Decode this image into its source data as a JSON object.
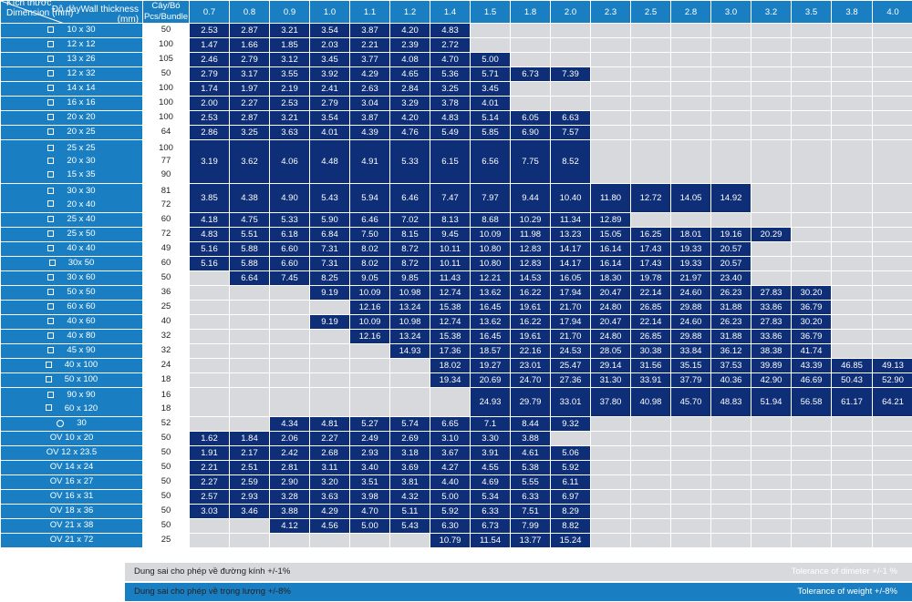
{
  "header": {
    "thickness_vi": "Độ dày",
    "thickness_en": "Wall thickness",
    "thickness_unit": "(mm)",
    "dimension_vi": "Kích thước",
    "dimension_en": "Dimension (mm)",
    "pcs_vi": "Cây/Bó",
    "pcs_en": "Pcs/Bundle",
    "thicknesses": [
      "0.7",
      "0.8",
      "0.9",
      "1.0",
      "1.1",
      "1.2",
      "1.4",
      "1.5",
      "1.8",
      "2.0",
      "2.3",
      "2.5",
      "2.8",
      "3.0",
      "3.2",
      "3.5",
      "3.8",
      "4.0"
    ]
  },
  "rows": [
    {
      "shape": "square",
      "dims": [
        "10 x 30"
      ],
      "pcs": [
        "50"
      ],
      "cells": [
        "2.53",
        "2.87",
        "3.21",
        "3.54",
        "3.87",
        "4.20",
        "4.83",
        null,
        null,
        null,
        null,
        null,
        null,
        null,
        null,
        null,
        null,
        null
      ]
    },
    {
      "shape": "square",
      "dims": [
        "12 x 12"
      ],
      "pcs": [
        "100"
      ],
      "cells": [
        "1.47",
        "1.66",
        "1.85",
        "2.03",
        "2.21",
        "2.39",
        "2.72",
        null,
        null,
        null,
        null,
        null,
        null,
        null,
        null,
        null,
        null,
        null
      ]
    },
    {
      "shape": "square",
      "dims": [
        "13 x 26"
      ],
      "pcs": [
        "105"
      ],
      "cells": [
        "2.46",
        "2.79",
        "3.12",
        "3.45",
        "3.77",
        "4.08",
        "4.70",
        "5.00",
        null,
        null,
        null,
        null,
        null,
        null,
        null,
        null,
        null,
        null
      ]
    },
    {
      "shape": "square",
      "dims": [
        "12 x 32"
      ],
      "pcs": [
        "50"
      ],
      "cells": [
        "2.79",
        "3.17",
        "3.55",
        "3.92",
        "4.29",
        "4.65",
        "5.36",
        "5.71",
        "6.73",
        "7.39",
        null,
        null,
        null,
        null,
        null,
        null,
        null,
        null
      ]
    },
    {
      "shape": "square",
      "dims": [
        "14 x 14"
      ],
      "pcs": [
        "100"
      ],
      "cells": [
        "1.74",
        "1.97",
        "2.19",
        "2.41",
        "2.63",
        "2.84",
        "3.25",
        "3.45",
        null,
        null,
        null,
        null,
        null,
        null,
        null,
        null,
        null,
        null
      ]
    },
    {
      "shape": "square",
      "dims": [
        "16 x 16"
      ],
      "pcs": [
        "100"
      ],
      "cells": [
        "2.00",
        "2.27",
        "2.53",
        "2.79",
        "3.04",
        "3.29",
        "3.78",
        "4.01",
        null,
        null,
        null,
        null,
        null,
        null,
        null,
        null,
        null,
        null
      ]
    },
    {
      "shape": "square",
      "dims": [
        "20 x 20"
      ],
      "pcs": [
        "100"
      ],
      "cells": [
        "2.53",
        "2.87",
        "3.21",
        "3.54",
        "3.87",
        "4.20",
        "4.83",
        "5.14",
        "6.05",
        "6.63",
        null,
        null,
        null,
        null,
        null,
        null,
        null,
        null
      ]
    },
    {
      "shape": "square",
      "dims": [
        "20 x 25"
      ],
      "pcs": [
        "64"
      ],
      "cells": [
        "2.86",
        "3.25",
        "3.63",
        "4.01",
        "4.39",
        "4.76",
        "5.49",
        "5.85",
        "6.90",
        "7.57",
        null,
        null,
        null,
        null,
        null,
        null,
        null,
        null
      ]
    },
    {
      "shape": "square",
      "dims": [
        "25 x 25",
        "20 x 30",
        "15 x 35"
      ],
      "pcs": [
        "100",
        "77",
        "90"
      ],
      "cells": [
        "3.19",
        "3.62",
        "4.06",
        "4.48",
        "4.91",
        "5.33",
        "6.15",
        "6.56",
        "7.75",
        "8.52",
        null,
        null,
        null,
        null,
        null,
        null,
        null,
        null
      ]
    },
    {
      "shape": "square",
      "dims": [
        "30 x 30",
        "20 x 40"
      ],
      "pcs": [
        "81",
        "72"
      ],
      "cells": [
        "3.85",
        "4.38",
        "4.90",
        "5.43",
        "5.94",
        "6.46",
        "7.47",
        "7.97",
        "9.44",
        "10.40",
        "11.80",
        "12.72",
        "14.05",
        "14.92",
        null,
        null,
        null,
        null
      ]
    },
    {
      "shape": "square",
      "dims": [
        "25 x 40"
      ],
      "pcs": [
        "60"
      ],
      "cells": [
        "4.18",
        "4.75",
        "5.33",
        "5.90",
        "6.46",
        "7.02",
        "8.13",
        "8.68",
        "10.29",
        "11.34",
        "12.89",
        null,
        null,
        null,
        null,
        null,
        null,
        null
      ]
    },
    {
      "shape": "square",
      "dims": [
        "25 x 50"
      ],
      "pcs": [
        "72"
      ],
      "cells": [
        "4.83",
        "5.51",
        "6.18",
        "6.84",
        "7.50",
        "8.15",
        "9.45",
        "10.09",
        "11.98",
        "13.23",
        "15.05",
        "16.25",
        "18.01",
        "19.16",
        "20.29",
        null,
        null,
        null
      ]
    },
    {
      "shape": "square",
      "dims": [
        "40 x 40"
      ],
      "pcs": [
        "49"
      ],
      "cells": [
        "5.16",
        "5.88",
        "6.60",
        "7.31",
        "8.02",
        "8.72",
        "10.11",
        "10.80",
        "12.83",
        "14.17",
        "16.14",
        "17.43",
        "19.33",
        "20.57",
        null,
        null,
        null,
        null
      ]
    },
    {
      "shape": "square",
      "dims": [
        "30x 50"
      ],
      "pcs": [
        "60"
      ],
      "cells": [
        "5.16",
        "5.88",
        "6.60",
        "7.31",
        "8.02",
        "8.72",
        "10.11",
        "10.80",
        "12.83",
        "14.17",
        "16.14",
        "17.43",
        "19.33",
        "20.57",
        null,
        null,
        null,
        null
      ]
    },
    {
      "shape": "square",
      "dims": [
        "30 x 60"
      ],
      "pcs": [
        "50"
      ],
      "cells": [
        null,
        "6.64",
        "7.45",
        "8.25",
        "9.05",
        "9.85",
        "11.43",
        "12.21",
        "14.53",
        "16.05",
        "18.30",
        "19.78",
        "21.97",
        "23.40",
        null,
        null,
        null,
        null
      ]
    },
    {
      "shape": "square",
      "dims": [
        "50 x 50"
      ],
      "pcs": [
        "36"
      ],
      "cells": [
        null,
        null,
        null,
        "9.19",
        "10.09",
        "10.98",
        "12.74",
        "13.62",
        "16.22",
        "17.94",
        "20.47",
        "22.14",
        "24.60",
        "26.23",
        "27.83",
        "30.20",
        null,
        null
      ]
    },
    {
      "shape": "square",
      "dims": [
        "60 x 60"
      ],
      "pcs": [
        "25"
      ],
      "cells": [
        null,
        null,
        null,
        null,
        "12.16",
        "13.24",
        "15.38",
        "16.45",
        "19.61",
        "21.70",
        "24.80",
        "26.85",
        "29.88",
        "31.88",
        "33.86",
        "36.79",
        null,
        null
      ]
    },
    {
      "shape": "square",
      "dims": [
        "40 x 60"
      ],
      "pcs": [
        "40"
      ],
      "cells": [
        null,
        null,
        null,
        "9.19",
        "10.09",
        "10.98",
        "12.74",
        "13.62",
        "16.22",
        "17.94",
        "20.47",
        "22.14",
        "24.60",
        "26.23",
        "27.83",
        "30.20",
        null,
        null
      ]
    },
    {
      "shape": "square",
      "dims": [
        "40 x 80"
      ],
      "pcs": [
        "32"
      ],
      "cells": [
        null,
        null,
        null,
        null,
        "12.16",
        "13.24",
        "15.38",
        "16.45",
        "19.61",
        "21.70",
        "24.80",
        "26.85",
        "29.88",
        "31.88",
        "33.86",
        "36.79",
        null,
        null
      ]
    },
    {
      "shape": "square",
      "dims": [
        "45 x 90"
      ],
      "pcs": [
        "32"
      ],
      "cells": [
        null,
        null,
        null,
        null,
        null,
        "14.93",
        "17.36",
        "18.57",
        "22.16",
        "24.53",
        "28.05",
        "30.38",
        "33.84",
        "36.12",
        "38.38",
        "41.74",
        null,
        null
      ]
    },
    {
      "shape": "square",
      "dims": [
        "40 x 100"
      ],
      "pcs": [
        "24"
      ],
      "cells": [
        null,
        null,
        null,
        null,
        null,
        null,
        "18.02",
        "19.27",
        "23.01",
        "25.47",
        "29.14",
        "31.56",
        "35.15",
        "37.53",
        "39.89",
        "43.39",
        "46.85",
        "49.13"
      ]
    },
    {
      "shape": "square",
      "dims": [
        "50 x 100"
      ],
      "pcs": [
        "18"
      ],
      "cells": [
        null,
        null,
        null,
        null,
        null,
        null,
        "19.34",
        "20.69",
        "24.70",
        "27.36",
        "31.30",
        "33.91",
        "37.79",
        "40.36",
        "42.90",
        "46.69",
        "50.43",
        "52.90"
      ]
    },
    {
      "shape": "square",
      "dims": [
        "90 x 90",
        "60 x 120"
      ],
      "pcs": [
        "16",
        "18"
      ],
      "cells": [
        null,
        null,
        null,
        null,
        null,
        null,
        null,
        "24.93",
        "29.79",
        "33.01",
        "37.80",
        "40.98",
        "45.70",
        "48.83",
        "51.94",
        "56.58",
        "61.17",
        "64.21"
      ]
    },
    {
      "shape": "circle",
      "dims": [
        "30"
      ],
      "pcs": [
        "52"
      ],
      "cells": [
        null,
        null,
        "4.34",
        "4.81",
        "5.27",
        "5.74",
        "6.65",
        "7.1",
        "8.44",
        "9.32",
        null,
        null,
        null,
        null,
        null,
        null,
        null,
        null
      ]
    },
    {
      "shape": "none",
      "dims": [
        "OV 10 x 20"
      ],
      "pcs": [
        "50"
      ],
      "cells": [
        "1.62",
        "1.84",
        "2.06",
        "2.27",
        "2.49",
        "2.69",
        "3.10",
        "3.30",
        "3.88",
        null,
        null,
        null,
        null,
        null,
        null,
        null,
        null,
        null
      ]
    },
    {
      "shape": "none",
      "dims": [
        "OV 12 x 23.5"
      ],
      "pcs": [
        "50"
      ],
      "cells": [
        "1.91",
        "2.17",
        "2.42",
        "2.68",
        "2.93",
        "3.18",
        "3.67",
        "3.91",
        "4.61",
        "5.06",
        null,
        null,
        null,
        null,
        null,
        null,
        null,
        null
      ]
    },
    {
      "shape": "none",
      "dims": [
        "OV 14 x 24"
      ],
      "pcs": [
        "50"
      ],
      "cells": [
        "2.21",
        "2.51",
        "2.81",
        "3.11",
        "3.40",
        "3.69",
        "4.27",
        "4.55",
        "5.38",
        "5.92",
        null,
        null,
        null,
        null,
        null,
        null,
        null,
        null
      ]
    },
    {
      "shape": "none",
      "dims": [
        "OV 16 x 27"
      ],
      "pcs": [
        "50"
      ],
      "cells": [
        "2.27",
        "2.59",
        "2.90",
        "3.20",
        "3.51",
        "3.81",
        "4.40",
        "4.69",
        "5.55",
        "6.11",
        null,
        null,
        null,
        null,
        null,
        null,
        null,
        null
      ]
    },
    {
      "shape": "none",
      "dims": [
        "OV 16 x 31"
      ],
      "pcs": [
        "50"
      ],
      "cells": [
        "2.57",
        "2.93",
        "3.28",
        "3.63",
        "3.98",
        "4.32",
        "5.00",
        "5.34",
        "6.33",
        "6.97",
        null,
        null,
        null,
        null,
        null,
        null,
        null,
        null
      ]
    },
    {
      "shape": "none",
      "dims": [
        "OV 18 x 36"
      ],
      "pcs": [
        "50"
      ],
      "cells": [
        "3.03",
        "3.46",
        "3.88",
        "4.29",
        "4.70",
        "5.11",
        "5.92",
        "6.33",
        "7.51",
        "8.29",
        null,
        null,
        null,
        null,
        null,
        null,
        null,
        null
      ]
    },
    {
      "shape": "none",
      "dims": [
        "OV 21 x 38"
      ],
      "pcs": [
        "50"
      ],
      "cells": [
        null,
        null,
        "4.12",
        "4.56",
        "5.00",
        "5.43",
        "6.30",
        "6.73",
        "7.99",
        "8.82",
        null,
        null,
        null,
        null,
        null,
        null,
        null,
        null
      ]
    },
    {
      "shape": "none",
      "dims": [
        "OV 21 x 72"
      ],
      "pcs": [
        "25"
      ],
      "cells": [
        null,
        null,
        null,
        null,
        null,
        null,
        "10.79",
        "11.54",
        "13.77",
        "15.24",
        null,
        null,
        null,
        null,
        null,
        null,
        null,
        null
      ]
    }
  ],
  "footer": {
    "diameter_vi": "Dung sai cho phép về đường kính +/-1%",
    "diameter_en": "Tolerance of dimeter +/-1 %",
    "weight_vi": "Dung sai cho phép về trọng lượng +/-8%",
    "weight_en": "Tolerance of weight +/-8%"
  },
  "colors": {
    "header_blue": "#1a7fc2",
    "value_navy": "#0e2f78",
    "empty_gray": "#d7d9dc"
  }
}
